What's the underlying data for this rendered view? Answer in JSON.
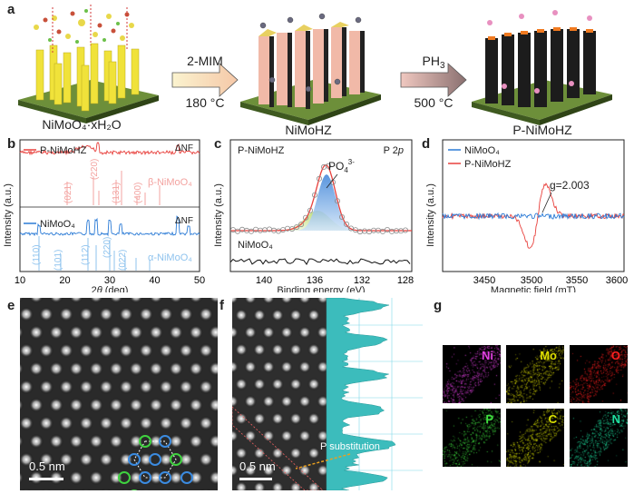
{
  "panel_a": {
    "letter": "a",
    "step1": {
      "reagent": "2-MIM",
      "condition": "180 °C"
    },
    "step2": {
      "reagent": "PH",
      "reagent_sub": "3",
      "condition": "500 °C"
    },
    "labels": {
      "left": "NiMoO₄·xH₂O",
      "middle": "NiMoHZ",
      "right": "P-NiMoHZ"
    }
  },
  "panel_b": {
    "letter": "b",
    "ylabel": "Intensity (a.u.)",
    "xlabel_prefix": "2",
    "xlabel_theta": "θ",
    "xlabel_suffix": " (deg)",
    "nf_label": "ΔNF",
    "top_legend": "P-NiMoHZ",
    "top_phase": "β-NiMoO₄",
    "top_peaks": [
      "(021)",
      "(220)",
      "(131)",
      "(400)"
    ],
    "bottom_legend": "NiMoO₄",
    "bottom_phase": "α-NiMoO₄",
    "bottom_peaks": [
      "(110)",
      "(101)",
      "(112)",
      "(220)",
      "(022)"
    ],
    "xticks": [
      "10",
      "20",
      "30",
      "40",
      "50"
    ]
  },
  "panel_c": {
    "letter": "c",
    "ylabel": "Intensity (a.u.)",
    "xlabel": "Binding energy (eV)",
    "sample_top": "P-NiMoHZ",
    "level_prefix": "P 2",
    "level_orbital": "p",
    "peak_label": "PO",
    "peak_sub": "4",
    "peak_sup": "3-",
    "sample_bottom": "NiMoO₄",
    "xticks": [
      "140",
      "136",
      "132",
      "128"
    ]
  },
  "panel_d": {
    "letter": "d",
    "ylabel": "Intensity (a.u.)",
    "xlabel": "Magnetic field (mT)",
    "legend": [
      "NiMoO₄",
      "P-NiMoHZ"
    ],
    "g_label": "g=2.003",
    "xticks": [
      "3450",
      "3500",
      "3550",
      "3600"
    ]
  },
  "panel_e": {
    "letter": "e",
    "scalebar": "0.5 nm"
  },
  "panel_f": {
    "letter": "f",
    "scalebar": "0.5 nm",
    "annotation": "P substitution"
  },
  "panel_g": {
    "letter": "g",
    "maps": [
      {
        "element": "Ni",
        "color": "#e040e0"
      },
      {
        "element": "Mo",
        "color": "#e0e000"
      },
      {
        "element": "O",
        "color": "#ff2020"
      },
      {
        "element": "P",
        "color": "#40e040"
      },
      {
        "element": "C",
        "color": "#d8e000"
      },
      {
        "element": "N",
        "color": "#20e0a0"
      }
    ]
  },
  "colors": {
    "red": "#e8403c",
    "blue": "#2b7bd6",
    "pink_label": "#f3a3a0",
    "lightblue_label": "#8fc3ee"
  }
}
